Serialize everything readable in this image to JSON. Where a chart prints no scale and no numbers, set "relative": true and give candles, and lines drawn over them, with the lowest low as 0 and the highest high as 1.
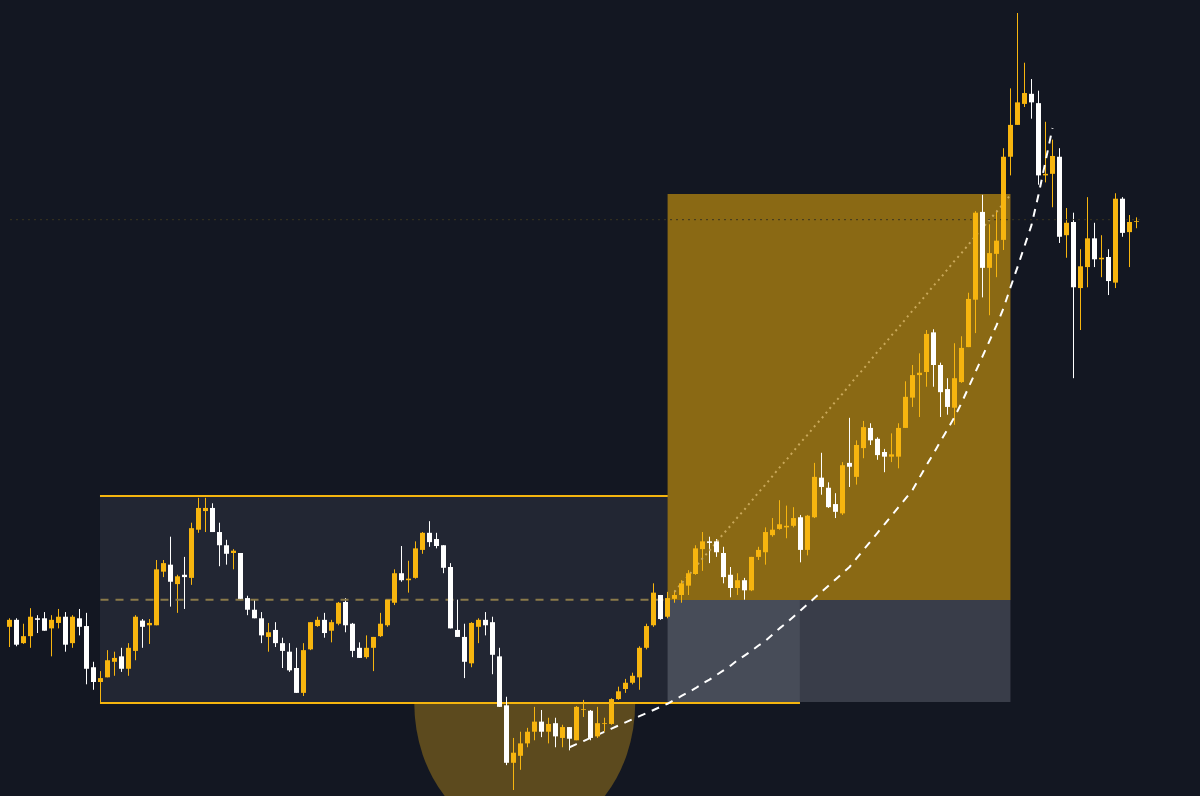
{
  "chart_data": {
    "type": "candlestick",
    "relative": true,
    "tick_labels": false,
    "ref_lines": [
      {
        "axis": "y",
        "value": 0.734,
        "color": "#3a3420",
        "line_style": "dotted"
      }
    ],
    "series": [
      {
        "type": "line",
        "color": "#8a7a4a",
        "line_style": "dashed",
        "values": [
          null,
          null,
          null,
          null,
          null,
          null,
          null,
          null,
          null,
          null,
          null,
          null,
          null,
          0.245,
          0.245,
          0.245,
          0.245,
          0.245,
          0.245,
          0.245,
          0.245,
          0.245,
          0.245,
          0.245,
          0.245,
          0.245,
          0.245,
          0.245,
          0.245,
          0.245,
          0.245,
          0.245,
          0.245,
          0.245,
          0.245,
          0.245,
          0.245,
          0.245,
          0.245,
          0.245,
          0.245,
          0.245,
          0.245,
          0.245,
          0.245,
          0.245,
          0.245,
          0.245,
          0.245,
          0.245,
          0.245,
          0.245,
          0.245,
          0.245,
          0.245,
          0.245,
          0.245,
          0.245,
          0.245,
          0.245,
          0.245,
          0.245,
          0.245,
          0.245,
          0.245,
          0.245,
          0.245,
          0.245,
          0.245,
          0.245,
          0.245,
          0.245,
          0.245,
          0.245,
          0.245,
          0.245,
          0.245,
          0.245,
          0.245,
          0.245,
          0.245,
          0.245,
          0.245,
          0.245,
          0.245,
          0.245,
          0.245,
          0.245,
          0.245,
          0.245,
          0.245,
          0.245,
          0.245,
          0.245,
          0.245,
          null,
          null,
          null,
          null,
          null,
          null,
          null,
          null,
          null,
          null,
          null,
          null,
          null,
          null,
          null,
          null,
          null,
          null,
          null,
          null,
          null,
          null,
          null,
          null,
          null,
          null,
          null,
          null,
          null,
          null,
          null,
          null,
          null,
          null,
          null,
          null,
          null,
          null,
          null,
          null,
          null,
          null,
          null,
          null,
          null,
          null,
          null,
          null,
          null,
          null,
          null,
          null,
          null,
          null,
          null,
          null,
          null,
          null,
          null,
          null,
          null,
          null,
          null,
          null,
          null,
          null,
          null
        ]
      },
      {
        "type": "line",
        "color": "#c9a85a",
        "line_style": "dotted",
        "values": [
          null,
          null,
          null,
          null,
          null,
          null,
          null,
          null,
          null,
          null,
          null,
          null,
          null,
          null,
          null,
          null,
          null,
          null,
          null,
          null,
          null,
          null,
          null,
          null,
          null,
          null,
          null,
          null,
          null,
          null,
          null,
          null,
          null,
          null,
          null,
          null,
          null,
          null,
          null,
          null,
          null,
          null,
          null,
          null,
          null,
          null,
          null,
          null,
          null,
          null,
          null,
          null,
          null,
          null,
          null,
          null,
          null,
          null,
          null,
          null,
          null,
          null,
          null,
          null,
          null,
          null,
          null,
          null,
          null,
          null,
          null,
          null,
          null,
          null,
          null,
          null,
          null,
          null,
          null,
          null,
          null,
          null,
          null,
          null,
          null,
          null,
          null,
          null,
          null,
          null,
          null,
          null,
          null,
          null,
          null,
          0.255,
          0.266,
          0.276,
          0.287,
          0.298,
          0.308,
          0.319,
          0.33,
          0.34,
          0.351,
          0.361,
          0.372,
          0.383,
          0.393,
          0.404,
          0.415,
          0.425,
          0.436,
          0.447,
          0.457,
          0.468,
          0.478,
          0.489,
          0.5,
          0.51,
          0.521,
          0.532,
          0.542,
          0.553,
          0.564,
          0.574,
          0.585,
          0.595,
          0.606,
          0.617,
          0.627,
          0.638,
          0.649,
          0.659,
          0.67,
          0.681,
          0.691,
          0.702,
          0.713,
          0.723,
          0.734,
          0.744,
          0.755,
          0.766,
          null,
          null,
          null,
          null,
          null,
          null,
          null,
          null,
          null,
          null,
          null,
          null,
          null,
          null,
          null,
          null,
          null,
          null
        ]
      },
      {
        "type": "line",
        "color": "#ffffff",
        "line_style": "dashed",
        "values": [
          null,
          null,
          null,
          null,
          null,
          null,
          null,
          null,
          null,
          null,
          null,
          null,
          null,
          null,
          null,
          null,
          null,
          null,
          null,
          null,
          null,
          null,
          null,
          null,
          null,
          null,
          null,
          null,
          null,
          null,
          null,
          null,
          null,
          null,
          null,
          null,
          null,
          null,
          null,
          null,
          null,
          null,
          null,
          null,
          null,
          null,
          null,
          null,
          null,
          null,
          null,
          null,
          null,
          null,
          null,
          null,
          null,
          null,
          null,
          null,
          null,
          null,
          null,
          null,
          null,
          null,
          null,
          null,
          null,
          null,
          null,
          null,
          null,
          null,
          null,
          null,
          null,
          null,
          null,
          null,
          0.055,
          0.059,
          0.063,
          0.067,
          0.071,
          0.075,
          0.079,
          0.083,
          0.087,
          0.091,
          0.095,
          0.099,
          0.103,
          0.107,
          0.111,
          0.116,
          0.121,
          0.126,
          0.131,
          0.137,
          0.142,
          0.148,
          0.154,
          0.16,
          0.167,
          0.173,
          0.179,
          0.186,
          0.192,
          0.2,
          0.208,
          0.215,
          0.223,
          0.231,
          0.239,
          0.247,
          0.255,
          0.263,
          0.271,
          0.279,
          0.287,
          0.298,
          0.309,
          0.32,
          0.331,
          0.342,
          0.353,
          0.364,
          0.375,
          0.386,
          0.402,
          0.418,
          0.433,
          0.449,
          0.464,
          0.48,
          0.498,
          0.518,
          0.538,
          0.558,
          0.578,
          0.598,
          0.62,
          0.647,
          0.673,
          0.7,
          0.727,
          0.766,
          0.809,
          0.852,
          null,
          null,
          null,
          null,
          null,
          null,
          null,
          null,
          null,
          null,
          null,
          null
        ]
      }
    ],
    "categories": [
      null,
      null,
      null,
      null,
      null,
      null,
      null,
      null,
      null,
      null,
      null,
      null,
      null,
      null,
      null,
      null,
      null,
      null,
      null,
      null,
      null,
      null,
      null,
      null,
      null,
      null,
      null,
      null,
      null,
      null,
      null,
      null,
      null,
      null,
      null,
      null,
      null,
      null,
      null,
      null,
      null,
      null,
      null,
      null,
      null,
      null,
      null,
      null,
      null,
      null,
      null,
      null,
      null,
      null,
      null,
      null,
      null,
      null,
      null,
      null,
      null,
      null,
      null,
      null,
      null,
      null,
      null,
      null,
      null,
      null,
      null,
      null,
      null,
      null,
      null,
      null,
      null,
      null,
      null,
      null,
      null,
      null,
      null,
      null,
      null,
      null,
      null,
      null,
      null,
      null,
      null,
      null,
      null,
      null,
      null,
      null,
      null,
      null,
      null,
      null,
      null,
      null,
      null,
      null,
      null,
      null,
      null,
      null,
      null,
      null,
      null,
      null,
      null,
      null,
      null,
      null,
      null,
      null,
      null,
      null,
      null,
      null,
      null,
      null,
      null,
      null,
      null,
      null,
      null,
      null,
      null,
      null,
      null,
      null,
      null,
      null,
      null,
      null,
      null,
      null,
      null,
      null,
      null,
      null,
      null,
      null,
      null,
      null,
      null,
      null,
      null,
      null,
      null,
      null,
      null,
      null,
      null,
      null,
      null,
      null,
      null,
      null
    ],
    "ohlc": [
      [
        0.21,
        0.221,
        0.184,
        0.219
      ],
      [
        0.219,
        0.221,
        0.185,
        0.187
      ],
      [
        0.189,
        0.214,
        0.188,
        0.198
      ],
      [
        0.198,
        0.234,
        0.183,
        0.223
      ],
      [
        0.221,
        0.225,
        0.202,
        0.219
      ],
      [
        0.221,
        0.229,
        0.205,
        0.205
      ],
      [
        0.208,
        0.225,
        0.172,
        0.219
      ],
      [
        0.215,
        0.233,
        0.208,
        0.223
      ],
      [
        0.223,
        0.229,
        0.178,
        0.187
      ],
      [
        0.189,
        0.225,
        0.183,
        0.223
      ],
      [
        0.221,
        0.233,
        0.199,
        0.21
      ],
      [
        0.211,
        0.228,
        0.136,
        0.156
      ],
      [
        0.158,
        0.165,
        0.129,
        0.139
      ],
      [
        0.139,
        0.153,
        0.112,
        0.144
      ],
      [
        0.145,
        0.18,
        0.145,
        0.167
      ],
      [
        0.165,
        0.178,
        0.147,
        0.17
      ],
      [
        0.172,
        0.183,
        0.152,
        0.156
      ],
      [
        0.156,
        0.189,
        0.147,
        0.183
      ],
      [
        0.179,
        0.225,
        0.167,
        0.223
      ],
      [
        0.218,
        0.22,
        0.183,
        0.21
      ],
      [
        0.212,
        0.22,
        0.188,
        0.215
      ],
      [
        0.212,
        0.296,
        0.212,
        0.284
      ],
      [
        0.281,
        0.296,
        0.274,
        0.292
      ],
      [
        0.29,
        0.326,
        0.236,
        0.268
      ],
      [
        0.265,
        0.277,
        0.228,
        0.275
      ],
      [
        0.277,
        0.3,
        0.233,
        0.274
      ],
      [
        0.273,
        0.344,
        0.264,
        0.337
      ],
      [
        0.335,
        0.376,
        0.331,
        0.363
      ],
      [
        0.359,
        0.376,
        0.332,
        0.363
      ],
      [
        0.363,
        0.369,
        0.332,
        0.332
      ],
      [
        0.332,
        0.344,
        0.288,
        0.315
      ],
      [
        0.315,
        0.322,
        0.29,
        0.304
      ],
      [
        0.305,
        0.31,
        0.284,
        0.308
      ],
      [
        0.305,
        0.305,
        0.246,
        0.246
      ],
      [
        0.247,
        0.25,
        0.225,
        0.232
      ],
      [
        0.232,
        0.245,
        0.221,
        0.221
      ],
      [
        0.221,
        0.229,
        0.189,
        0.199
      ],
      [
        0.197,
        0.215,
        0.178,
        0.203
      ],
      [
        0.206,
        0.216,
        0.184,
        0.189
      ],
      [
        0.189,
        0.196,
        0.157,
        0.179
      ],
      [
        0.178,
        0.189,
        0.152,
        0.154
      ],
      [
        0.157,
        0.183,
        0.125,
        0.125
      ],
      [
        0.125,
        0.189,
        0.121,
        0.18
      ],
      [
        0.181,
        0.216,
        0.18,
        0.216
      ],
      [
        0.211,
        0.223,
        0.21,
        0.219
      ],
      [
        0.219,
        0.228,
        0.196,
        0.202
      ],
      [
        0.205,
        0.219,
        0.19,
        0.216
      ],
      [
        0.214,
        0.242,
        0.212,
        0.241
      ],
      [
        0.242,
        0.247,
        0.203,
        0.212
      ],
      [
        0.214,
        0.215,
        0.171,
        0.179
      ],
      [
        0.183,
        0.19,
        0.17,
        0.17
      ],
      [
        0.171,
        0.199,
        0.169,
        0.183
      ],
      [
        0.183,
        0.197,
        0.153,
        0.197
      ],
      [
        0.198,
        0.228,
        0.197,
        0.214
      ],
      [
        0.212,
        0.245,
        0.21,
        0.245
      ],
      [
        0.241,
        0.284,
        0.238,
        0.279
      ],
      [
        0.279,
        0.314,
        0.268,
        0.27
      ],
      [
        0.27,
        0.295,
        0.254,
        0.272
      ],
      [
        0.273,
        0.32,
        0.272,
        0.311
      ],
      [
        0.309,
        0.332,
        0.304,
        0.331
      ],
      [
        0.331,
        0.346,
        0.313,
        0.319
      ],
      [
        0.323,
        0.331,
        0.311,
        0.314
      ],
      [
        0.315,
        0.315,
        0.279,
        0.286
      ],
      [
        0.287,
        0.292,
        0.208,
        0.208
      ],
      [
        0.206,
        0.245,
        0.197,
        0.197
      ],
      [
        0.197,
        0.214,
        0.144,
        0.165
      ],
      [
        0.163,
        0.216,
        0.158,
        0.215
      ],
      [
        0.21,
        0.221,
        0.189,
        0.219
      ],
      [
        0.219,
        0.229,
        0.199,
        0.212
      ],
      [
        0.216,
        0.223,
        0.149,
        0.174
      ],
      [
        0.172,
        0.183,
        0.107,
        0.107
      ],
      [
        0.109,
        0.12,
        0.032,
        0.035
      ],
      [
        0.035,
        0.067,
        0,
        0.048
      ],
      [
        0.044,
        0.075,
        0.026,
        0.06
      ],
      [
        0.06,
        0.08,
        0.055,
        0.075
      ],
      [
        0.075,
        0.107,
        0.064,
        0.088
      ],
      [
        0.088,
        0.103,
        0.068,
        0.075
      ],
      [
        0.075,
        0.093,
        0.06,
        0.085
      ],
      [
        0.086,
        0.093,
        0.055,
        0.069
      ],
      [
        0.067,
        0.084,
        0.055,
        0.081
      ],
      [
        0.081,
        0.081,
        0.051,
        0.066
      ],
      [
        0.064,
        0.108,
        0.064,
        0.107
      ],
      [
        0.103,
        0.116,
        0.094,
        0.104
      ],
      [
        0.102,
        0.103,
        0.064,
        0.067
      ],
      [
        0.069,
        0.107,
        0.067,
        0.086
      ],
      [
        0.085,
        0.093,
        0.075,
        0.086
      ],
      [
        0.085,
        0.118,
        0.084,
        0.117
      ],
      [
        0.117,
        0.133,
        0.116,
        0.127
      ],
      [
        0.13,
        0.143,
        0.125,
        0.138
      ],
      [
        0.138,
        0.151,
        0.136,
        0.147
      ],
      [
        0.145,
        0.185,
        0.129,
        0.183
      ],
      [
        0.183,
        0.214,
        0.181,
        0.211
      ],
      [
        0.212,
        0.266,
        0.21,
        0.254
      ],
      [
        0.251,
        0.251,
        0.219,
        0.22
      ],
      [
        0.223,
        0.255,
        0.221,
        0.247
      ],
      [
        0.246,
        0.257,
        0.241,
        0.251
      ],
      [
        0.251,
        0.27,
        0.241,
        0.266
      ],
      [
        0.263,
        0.283,
        0.251,
        0.279
      ],
      [
        0.278,
        0.315,
        0.277,
        0.311
      ],
      [
        0.31,
        0.332,
        0.282,
        0.32
      ],
      [
        0.32,
        0.326,
        0.292,
        0.318
      ],
      [
        0.32,
        0.323,
        0.3,
        0.306
      ],
      [
        0.305,
        0.313,
        0.266,
        0.274
      ],
      [
        0.277,
        0.287,
        0.248,
        0.26
      ],
      [
        0.26,
        0.279,
        0.251,
        0.27
      ],
      [
        0.27,
        0.273,
        0.245,
        0.257
      ],
      [
        0.257,
        0.3,
        0.256,
        0.3
      ],
      [
        0.3,
        0.313,
        0.296,
        0.309
      ],
      [
        0.306,
        0.338,
        0.29,
        0.332
      ],
      [
        0.328,
        0.35,
        0.326,
        0.335
      ],
      [
        0.336,
        0.373,
        0.335,
        0.342
      ],
      [
        0.338,
        0.366,
        0.324,
        0.34
      ],
      [
        0.34,
        0.364,
        0.338,
        0.35
      ],
      [
        0.351,
        0.354,
        0.293,
        0.309
      ],
      [
        0.309,
        0.354,
        0.302,
        0.353
      ],
      [
        0.351,
        0.421,
        0.35,
        0.403
      ],
      [
        0.402,
        0.434,
        0.38,
        0.39
      ],
      [
        0.389,
        0.396,
        0.363,
        0.364
      ],
      [
        0.368,
        0.382,
        0.35,
        0.358
      ],
      [
        0.356,
        0.422,
        0.354,
        0.418
      ],
      [
        0.421,
        0.479,
        0.39,
        0.416
      ],
      [
        0.403,
        0.45,
        0.393,
        0.444
      ],
      [
        0.44,
        0.475,
        0.427,
        0.467
      ],
      [
        0.466,
        0.472,
        0.444,
        0.45
      ],
      [
        0.452,
        0.454,
        0.425,
        0.431
      ],
      [
        0.435,
        0.439,
        0.409,
        0.429
      ],
      [
        0.429,
        0.459,
        0.422,
        0.432
      ],
      [
        0.429,
        0.472,
        0.414,
        0.466
      ],
      [
        0.466,
        0.526,
        0.466,
        0.506
      ],
      [
        0.505,
        0.547,
        0.493,
        0.534
      ],
      [
        0.534,
        0.562,
        0.48,
        0.537
      ],
      [
        0.538,
        0.592,
        0.519,
        0.587
      ],
      [
        0.589,
        0.593,
        0.519,
        0.547
      ],
      [
        0.547,
        0.55,
        0.48,
        0.512
      ],
      [
        0.516,
        0.53,
        0.483,
        0.493
      ],
      [
        0.492,
        0.575,
        0.47,
        0.53
      ],
      [
        0.525,
        0.584,
        0.524,
        0.569
      ],
      [
        0.57,
        0.64,
        0.57,
        0.632
      ],
      [
        0.631,
        0.745,
        0.588,
        0.743
      ],
      [
        0.744,
        0.766,
        0.634,
        0.672
      ],
      [
        0.672,
        0.728,
        0.611,
        0.691
      ],
      [
        0.69,
        0.746,
        0.66,
        0.707
      ],
      [
        0.708,
        0.826,
        0.695,
        0.815
      ],
      [
        0.815,
        0.903,
        0.791,
        0.856
      ],
      [
        0.856,
        1,
        0.856,
        0.885
      ],
      [
        0.883,
        0.936,
        0.879,
        0.897
      ],
      [
        0.896,
        0.915,
        0.864,
        0.885
      ],
      [
        0.884,
        0.9,
        0.779,
        0.791
      ],
      [
        0.791,
        0.86,
        0.782,
        0.793
      ],
      [
        0.793,
        0.837,
        0.75,
        0.816
      ],
      [
        0.815,
        0.826,
        0.704,
        0.712
      ],
      [
        0.714,
        0.749,
        0.685,
        0.73
      ],
      [
        0.731,
        0.743,
        0.53,
        0.647
      ],
      [
        0.646,
        0.696,
        0.592,
        0.674
      ],
      [
        0.673,
        0.763,
        0.647,
        0.71
      ],
      [
        0.71,
        0.73,
        0.673,
        0.683
      ],
      [
        0.683,
        0.714,
        0.66,
        0.685
      ],
      [
        0.686,
        0.696,
        0.637,
        0.655
      ],
      [
        0.653,
        0.768,
        0.646,
        0.761
      ],
      [
        0.761,
        0.763,
        0.712,
        0.717
      ],
      [
        0.718,
        0.74,
        0.673,
        0.731
      ],
      [
        0.731,
        0.737,
        0.723,
        0.732
      ]
    ],
    "colors": [
      "#f7b50f",
      "#ffffff",
      "#f7b50f",
      "#f7b50f",
      "#ffffff",
      "#ffffff",
      "#f7b50f",
      "#f7b50f",
      "#ffffff",
      "#f7b50f",
      "#ffffff",
      "#ffffff",
      "#ffffff",
      "#f7b50f",
      "#f7b50f",
      "#f7b50f",
      "#ffffff",
      "#f7b50f",
      "#f7b50f",
      "#ffffff",
      "#f7b50f",
      "#f7b50f",
      "#f7b50f",
      "#ffffff",
      "#f7b50f",
      "#ffffff",
      "#f7b50f",
      "#f7b50f",
      "#f7b50f",
      "#ffffff",
      "#ffffff",
      "#ffffff",
      "#f7b50f",
      "#ffffff",
      "#ffffff",
      "#ffffff",
      "#ffffff",
      "#f7b50f",
      "#ffffff",
      "#ffffff",
      "#ffffff",
      "#ffffff",
      "#f7b50f",
      "#f7b50f",
      "#f7b50f",
      "#ffffff",
      "#f7b50f",
      "#f7b50f",
      "#ffffff",
      "#ffffff",
      "#ffffff",
      "#f7b50f",
      "#f7b50f",
      "#f7b50f",
      "#f7b50f",
      "#f7b50f",
      "#ffffff",
      "#f7b50f",
      "#f7b50f",
      "#f7b50f",
      "#ffffff",
      "#ffffff",
      "#ffffff",
      "#ffffff",
      "#ffffff",
      "#ffffff",
      "#f7b50f",
      "#f7b50f",
      "#ffffff",
      "#ffffff",
      "#ffffff",
      "#ffffff",
      "#f7b50f",
      "#f7b50f",
      "#f7b50f",
      "#f7b50f",
      "#ffffff",
      "#f7b50f",
      "#ffffff",
      "#f7b50f",
      "#ffffff",
      "#f7b50f",
      "#f7b50f",
      "#ffffff",
      "#f7b50f",
      "#f7b50f",
      "#f7b50f",
      "#f7b50f",
      "#f7b50f",
      "#f7b50f",
      "#f7b50f",
      "#f7b50f",
      "#f7b50f",
      "#ffffff",
      "#f7b50f",
      "#f7b50f",
      "#f7b50f",
      "#f7b50f",
      "#f7b50f",
      "#f7b50f",
      "#ffffff",
      "#ffffff",
      "#ffffff",
      "#ffffff",
      "#f7b50f",
      "#ffffff",
      "#f7b50f",
      "#f7b50f",
      "#f7b50f",
      "#f7b50f",
      "#f7b50f",
      "#f7b50f",
      "#f7b50f",
      "#ffffff",
      "#f7b50f",
      "#f7b50f",
      "#ffffff",
      "#ffffff",
      "#ffffff",
      "#f7b50f",
      "#ffffff",
      "#f7b50f",
      "#f7b50f",
      "#ffffff",
      "#ffffff",
      "#ffffff",
      "#f7b50f",
      "#f7b50f",
      "#f7b50f",
      "#f7b50f",
      "#f7b50f",
      "#f7b50f",
      "#ffffff",
      "#ffffff",
      "#ffffff",
      "#f7b50f",
      "#f7b50f",
      "#f7b50f",
      "#f7b50f",
      "#ffffff",
      "#f7b50f",
      "#f7b50f",
      "#f7b50f",
      "#f7b50f",
      "#f7b50f",
      "#f7b50f",
      "#ffffff",
      "#ffffff",
      "#f7b50f",
      "#f7b50f",
      "#ffffff",
      "#f7b50f",
      "#ffffff",
      "#f7b50f",
      "#f7b50f",
      "#ffffff",
      "#f7b50f",
      "#ffffff",
      "#f7b50f",
      "#ffffff",
      "#f7b50f",
      "#f7b50f"
    ]
  }
}
